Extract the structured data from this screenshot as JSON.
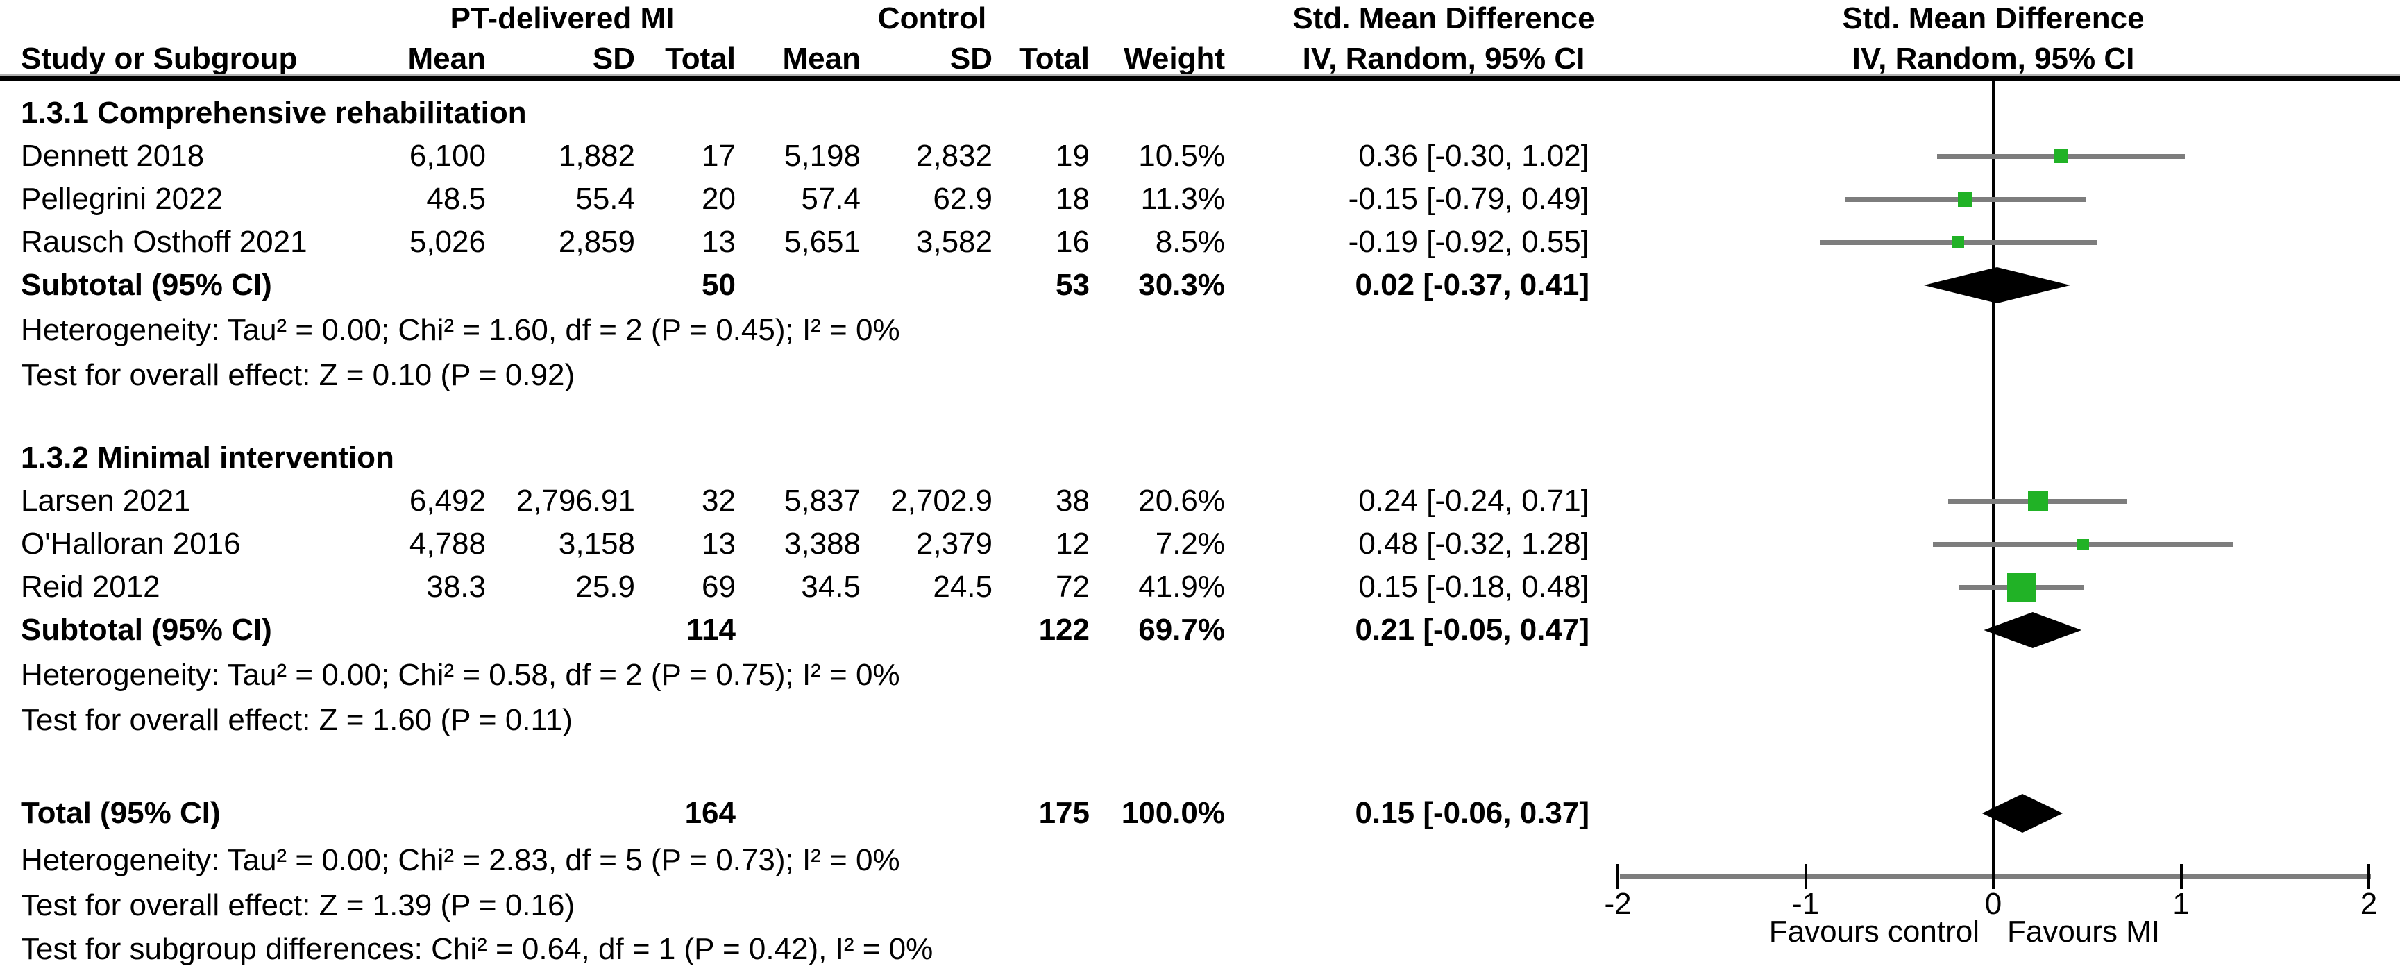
{
  "title_row": {
    "group1": "PT-delivered MI",
    "group2": "Control",
    "smd_col": "Std. Mean Difference",
    "smd_plot": "Std. Mean Difference"
  },
  "columns": [
    "Study or Subgroup",
    "Mean",
    "SD",
    "Total",
    "Mean",
    "SD",
    "Total",
    "Weight",
    "IV, Random, 95% CI",
    "IV, Random, 95% CI"
  ],
  "sections": [
    {
      "header": "1.3.1 Comprehensive rehabilitation",
      "studies": [
        {
          "name": "Dennett 2018",
          "mean1": "6,100",
          "sd1": "1,882",
          "total1": "17",
          "mean2": "5,198",
          "sd2": "2,832",
          "total2": "19",
          "weight": "10.5%",
          "ci_text": "0.36 [-0.30, 1.02]"
        },
        {
          "name": "Pellegrini 2022",
          "mean1": "48.5",
          "sd1": "55.4",
          "total1": "20",
          "mean2": "57.4",
          "sd2": "62.9",
          "total2": "18",
          "weight": "11.3%",
          "ci_text": "-0.15 [-0.79, 0.49]"
        },
        {
          "name": "Rausch Osthoff 2021",
          "mean1": "5,026",
          "sd1": "2,859",
          "total1": "13",
          "mean2": "5,651",
          "sd2": "3,582",
          "total2": "16",
          "weight": "8.5%",
          "ci_text": "-0.19 [-0.92, 0.55]"
        }
      ],
      "subtotal": {
        "label": "Subtotal (95% CI)",
        "total1": "50",
        "total2": "53",
        "weight": "30.3%",
        "ci_text": "0.02 [-0.37, 0.41]"
      },
      "heterogeneity": "Heterogeneity: Tau² = 0.00; Chi² = 1.60, df = 2 (P = 0.45); I² = 0%",
      "overall_effect": "Test for overall effect: Z = 0.10 (P = 0.92)"
    },
    {
      "header": "1.3.2 Minimal intervention",
      "studies": [
        {
          "name": "Larsen 2021",
          "mean1": "6,492",
          "sd1": "2,796.91",
          "total1": "32",
          "mean2": "5,837",
          "sd2": "2,702.9",
          "total2": "38",
          "weight": "20.6%",
          "ci_text": "0.24 [-0.24, 0.71]"
        },
        {
          "name": "O'Halloran 2016",
          "mean1": "4,788",
          "sd1": "3,158",
          "total1": "13",
          "mean2": "3,388",
          "sd2": "2,379",
          "total2": "12",
          "weight": "7.2%",
          "ci_text": "0.48 [-0.32, 1.28]"
        },
        {
          "name": "Reid 2012",
          "mean1": "38.3",
          "sd1": "25.9",
          "total1": "69",
          "mean2": "34.5",
          "sd2": "24.5",
          "total2": "72",
          "weight": "41.9%",
          "ci_text": "0.15 [-0.18, 0.48]"
        }
      ],
      "subtotal": {
        "label": "Subtotal (95% CI)",
        "total1": "114",
        "total2": "122",
        "weight": "69.7%",
        "ci_text": "0.21 [-0.05, 0.47]"
      },
      "heterogeneity": "Heterogeneity: Tau² = 0.00; Chi² = 0.58, df = 2 (P = 0.75); I² = 0%",
      "overall_effect": "Test for overall effect: Z = 1.60 (P = 0.11)"
    }
  ],
  "total": {
    "label": "Total (95% CI)",
    "total1": "164",
    "total2": "175",
    "weight": "100.0%",
    "ci_text": "0.15 [-0.06, 0.37]",
    "heterogeneity": "Heterogeneity: Tau² = 0.00; Chi² = 2.83, df = 5 (P = 0.73); I² = 0%",
    "overall_effect": "Test for overall effect: Z = 1.39 (P = 0.16)",
    "subgroup_diff": "Test for subgroup differences: Chi² = 0.64, df = 1 (P = 0.42), I² = 0%"
  },
  "axis": {
    "ticks": [
      -2,
      -1,
      0,
      1,
      2
    ],
    "min": -2,
    "max": 2,
    "left_label": "Favours control",
    "right_label": "Favours MI"
  },
  "colors": {
    "square_green": "#21b226",
    "ci_gray": "#7d7d7d",
    "diamond_black": "#000000"
  },
  "chart_data": {
    "type": "forest",
    "effect_label": "Std. Mean Difference",
    "method": "IV, Random, 95% CI",
    "xlim": [
      -2,
      2
    ],
    "xticks": [
      -2,
      -1,
      0,
      1,
      2
    ],
    "x_axis_labels": {
      "left": "Favours control",
      "right": "Favours MI"
    },
    "subgroups": [
      {
        "name": "1.3.1 Comprehensive rehabilitation",
        "studies": [
          {
            "study": "Dennett 2018",
            "smd": 0.36,
            "ci_low": -0.3,
            "ci_high": 1.02,
            "weight_pct": 10.5
          },
          {
            "study": "Pellegrini 2022",
            "smd": -0.15,
            "ci_low": -0.79,
            "ci_high": 0.49,
            "weight_pct": 11.3
          },
          {
            "study": "Rausch Osthoff 2021",
            "smd": -0.19,
            "ci_low": -0.92,
            "ci_high": 0.55,
            "weight_pct": 8.5
          }
        ],
        "subtotal": {
          "smd": 0.02,
          "ci_low": -0.37,
          "ci_high": 0.41,
          "weight_pct": 30.3
        }
      },
      {
        "name": "1.3.2 Minimal intervention",
        "studies": [
          {
            "study": "Larsen 2021",
            "smd": 0.24,
            "ci_low": -0.24,
            "ci_high": 0.71,
            "weight_pct": 20.6
          },
          {
            "study": "O'Halloran 2016",
            "smd": 0.48,
            "ci_low": -0.32,
            "ci_high": 1.28,
            "weight_pct": 7.2
          },
          {
            "study": "Reid 2012",
            "smd": 0.15,
            "ci_low": -0.18,
            "ci_high": 0.48,
            "weight_pct": 41.9
          }
        ],
        "subtotal": {
          "smd": 0.21,
          "ci_low": -0.05,
          "ci_high": 0.47,
          "weight_pct": 69.7
        }
      }
    ],
    "total": {
      "smd": 0.15,
      "ci_low": -0.06,
      "ci_high": 0.37,
      "weight_pct": 100.0
    }
  }
}
